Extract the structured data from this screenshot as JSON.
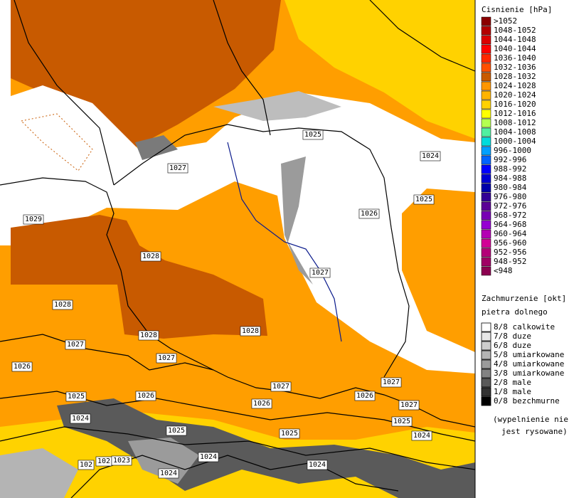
{
  "pressure_legend": {
    "title": "Cisnienie [hPa]",
    "items": [
      {
        "label": ">1052",
        "color": "#8b0000"
      },
      {
        "label": "1048-1052",
        "color": "#b40000"
      },
      {
        "label": "1044-1048",
        "color": "#dc0000"
      },
      {
        "label": "1040-1044",
        "color": "#ff0000"
      },
      {
        "label": "1036-1040",
        "color": "#ff2800"
      },
      {
        "label": "1032-1036",
        "color": "#ff5000"
      },
      {
        "label": "1028-1032",
        "color": "#c85a00"
      },
      {
        "label": "1024-1028",
        "color": "#ff9600"
      },
      {
        "label": "1020-1024",
        "color": "#ffb400"
      },
      {
        "label": "1016-1020",
        "color": "#ffd200"
      },
      {
        "label": "1012-1016",
        "color": "#ffff00"
      },
      {
        "label": "1008-1012",
        "color": "#b4ff50"
      },
      {
        "label": "1004-1008",
        "color": "#50f0a0"
      },
      {
        "label": "1000-1004",
        "color": "#00dcdc"
      },
      {
        "label": "996-1000",
        "color": "#00a0ff"
      },
      {
        "label": "992-996",
        "color": "#0064ff"
      },
      {
        "label": "988-992",
        "color": "#0000ff"
      },
      {
        "label": "984-988",
        "color": "#0000d2"
      },
      {
        "label": "980-984",
        "color": "#0000aa"
      },
      {
        "label": "976-980",
        "color": "#320096"
      },
      {
        "label": "972-976",
        "color": "#5a0096"
      },
      {
        "label": "968-972",
        "color": "#7800b4"
      },
      {
        "label": "964-968",
        "color": "#9600d2"
      },
      {
        "label": "960-964",
        "color": "#b400b4"
      },
      {
        "label": "956-960",
        "color": "#d20096"
      },
      {
        "label": "952-956",
        "color": "#b40078"
      },
      {
        "label": "948-952",
        "color": "#a00064"
      },
      {
        "label": "<948",
        "color": "#8c0050"
      }
    ]
  },
  "cloud_legend": {
    "title": "Zachmurzenie [okt]",
    "subtitle": "pietra dolnego",
    "items": [
      {
        "label": "8/8 calkowite",
        "color": "#ffffff"
      },
      {
        "label": "7/8 duze",
        "color": "#e6e6e6"
      },
      {
        "label": "6/8 duze",
        "color": "#cdcdcd"
      },
      {
        "label": "5/8 umiarkowane",
        "color": "#b4b4b4"
      },
      {
        "label": "4/8 umiarkowane",
        "color": "#9b9b9b"
      },
      {
        "label": "3/8 umiarkowane",
        "color": "#828282"
      },
      {
        "label": "2/8 male",
        "color": "#5a5a5a"
      },
      {
        "label": "1/8 male",
        "color": "#323232"
      },
      {
        "label": "0/8 bezchmurne",
        "color": "#000000"
      }
    ],
    "note": [
      "(wypelnienie nie",
      "jest rysowane)"
    ]
  },
  "isobar_labels": [
    "1025",
    "1024",
    "1027",
    "1025",
    "1026",
    "1029",
    "1028",
    "1027",
    "1028",
    "1028",
    "1028",
    "1027",
    "1027",
    "1026",
    "1027",
    "1027",
    "1025",
    "1026",
    "1026",
    "1026",
    "1027",
    "1024",
    "1025",
    "1025",
    "1025",
    "1024",
    "1024",
    "1024",
    "102",
    "102",
    "1023",
    "1024"
  ]
}
